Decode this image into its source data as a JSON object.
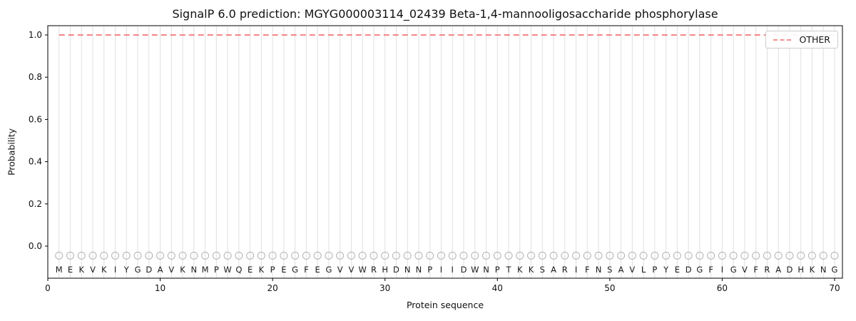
{
  "chart_data": {
    "type": "line",
    "title": "SignalP 6.0 prediction: MGYG000003114_02439 Beta-1,4-mannooligosaccharide phosphorylase",
    "xlabel": "Protein sequence",
    "ylabel": "Probability",
    "xlim": [
      0,
      70.7
    ],
    "ylim": [
      -0.152,
      1.044
    ],
    "xticks": [
      0,
      10,
      20,
      30,
      40,
      50,
      60,
      70
    ],
    "yticks": [
      0.0,
      0.2,
      0.4,
      0.6,
      0.8,
      1.0
    ],
    "grid": {
      "vertical_per_residue": true,
      "color": "#e0e0e0"
    },
    "legend": {
      "label": "OTHER",
      "loc": "upper right",
      "color": "#f26b6b",
      "dashed": true
    },
    "sequence": "MEKVKIYGDAVKNMPWQEKPEGFEGVVWRHDNNPIIDWNPTKKSARIFNSAVLPYEDGFIGVFRADHKNG",
    "series": [
      {
        "name": "OTHER",
        "style": "dashed",
        "color": "#f26b6b",
        "constant_value": 1.0,
        "x_start": 1,
        "x_end": 70
      }
    ],
    "residue_markers": {
      "shape": "circle",
      "y": -0.045,
      "color": "#b3b3b3"
    },
    "letter_y": -0.112,
    "spine_color": "#000000",
    "text_color": "#111111"
  }
}
